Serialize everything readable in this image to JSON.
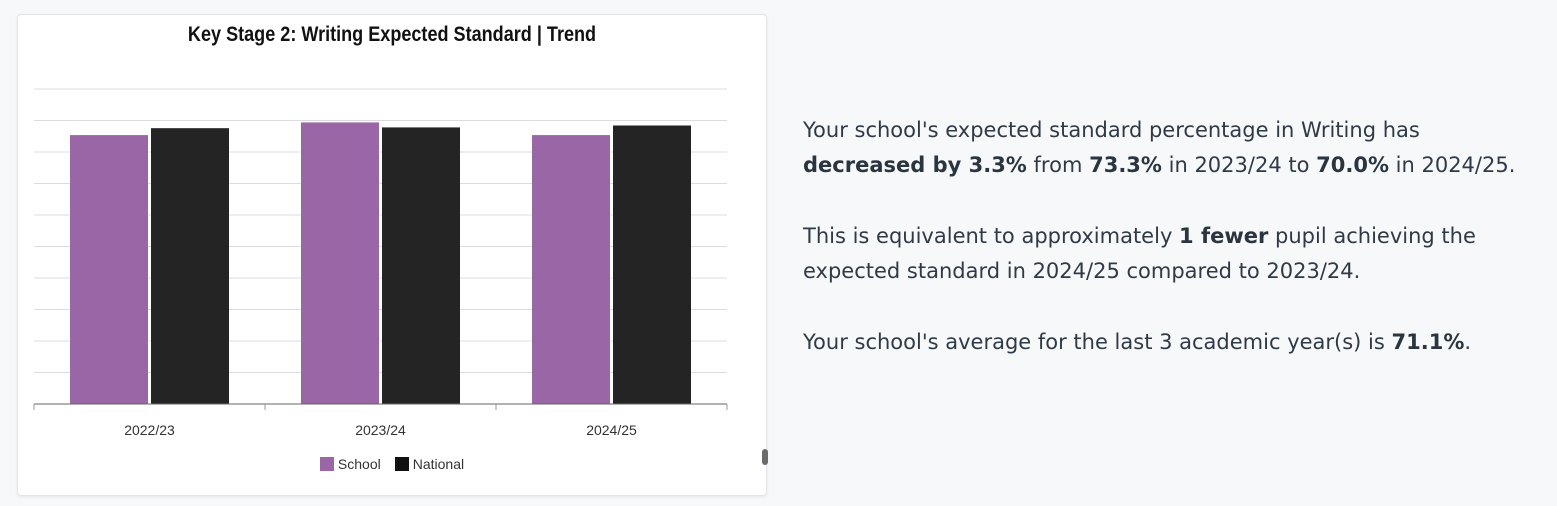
{
  "chart_data": {
    "type": "bar",
    "title": "Key Stage 2: Writing Expected Standard | Trend",
    "categories": [
      "2022/23",
      "2023/24",
      "2024/25"
    ],
    "series": [
      {
        "name": "School",
        "values": [
          70.0,
          73.3,
          70.0
        ],
        "color": "#9b66a6"
      },
      {
        "name": "National",
        "values": [
          71.8,
          72.0,
          72.5
        ],
        "color": "#242424"
      }
    ],
    "ylim": [
      0,
      82
    ],
    "grid": true,
    "legend_position": "bottom"
  },
  "summary": {
    "p1": {
      "t1": "Your school's expected standard percentage in Writing has ",
      "b1": "decreased by 3.3%",
      "t2": " from ",
      "b2": "73.3%",
      "t3": " in 2023/24 to ",
      "b3": "70.0%",
      "t4": " in 2024/25."
    },
    "p2": {
      "t1": "This is equivalent to approximately ",
      "b1": "1 fewer",
      "t2": " pupil achieving the expected standard in 2024/25 compared to 2023/24."
    },
    "p3": {
      "t1": "Your school's average for the last 3 academic year(s) is ",
      "b1": "71.1%",
      "t2": "."
    }
  }
}
